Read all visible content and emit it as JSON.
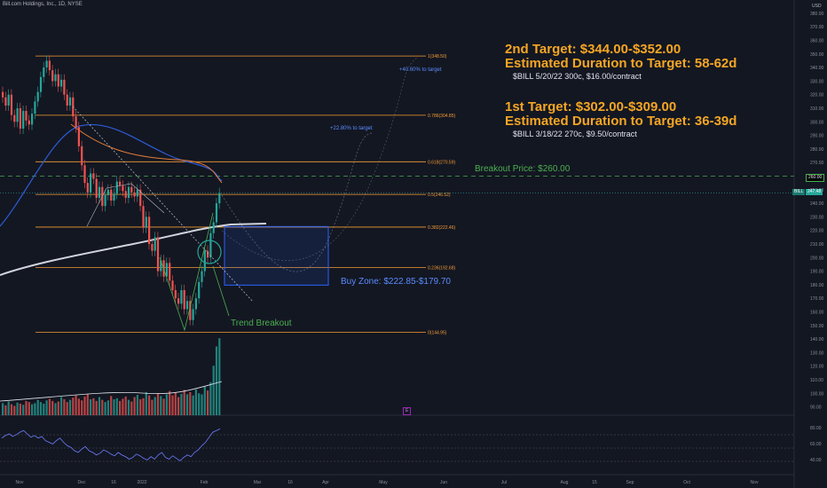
{
  "header": {
    "title": "Bill.com Holdings, Inc., 1D, NYSE"
  },
  "currency": "USD",
  "annotations": {
    "target2_title": "2nd Target: $344.00-$352.00",
    "target2_duration": "Estimated Duration to Target: 58-62d",
    "target2_option": "$BILL 5/20/22 300c, $16.00/contract",
    "target1_title": "1st Target: $302.00-$309.00",
    "target1_duration": "Estimated Duration to Target: 36-39d",
    "target1_option": "$BILL 3/18/22 270c, $9.50/contract",
    "breakout_price": "Breakout Price: $260.00",
    "buy_zone": "Buy Zone: $222.85-$179.70",
    "trend_breakout": "Trend Breakout",
    "pct_target_2": "+40.60% to target",
    "pct_target_1": "+22.80% to target"
  },
  "price_badges": {
    "breakout": "260.00",
    "ticker": "BILL",
    "last": "247.48"
  },
  "event_marker": "E",
  "colors": {
    "background": "#131722",
    "fib": "#f59b33",
    "target_text": "#f5a623",
    "breakout_text": "#4caf50",
    "buy_zone": "#2962ff",
    "up_candle": "#26a69a",
    "down_candle": "#ef5350",
    "ma_white": "#d1d4dc",
    "ma_blue": "#2d5bd4",
    "ma_orange": "#e07b39",
    "rsi_line": "#6f7cff"
  },
  "chart_data": {
    "type": "candlestick",
    "title": "Bill.com Holdings, Inc., 1D, NYSE",
    "ylim": [
      85,
      387
    ],
    "y_ticks": [
      90,
      100,
      110,
      120,
      130,
      140,
      150,
      160,
      170,
      180,
      190,
      200,
      210,
      220,
      230,
      240,
      250,
      260,
      270,
      280,
      290,
      300,
      310,
      320,
      330,
      340,
      350,
      360,
      370,
      380
    ],
    "x_ticks": [
      "Nov",
      "Dec",
      "16",
      "2022",
      "Feb",
      "Mar",
      "16",
      "Apr",
      "May",
      "Jun",
      "Jul",
      "Aug",
      "15",
      "Sep",
      "Oct",
      "Nov"
    ],
    "fib_levels": [
      {
        "label": "1(348.50)",
        "value": 348.5
      },
      {
        "label": "0.786(304.85)",
        "value": 304.85
      },
      {
        "label": "0.618(270.59)",
        "value": 270.59
      },
      {
        "label": "0.5(246.52)",
        "value": 246.52
      },
      {
        "label": "0.382(222.46)",
        "value": 222.46
      },
      {
        "label": "0.236(192.68)",
        "value": 192.68
      },
      {
        "label": "0(144.95)",
        "value": 144.95
      }
    ],
    "breakout_price": 260.0,
    "last_price": 247.48,
    "buy_zone": [
      179.7,
      222.85
    ],
    "closes": [
      318,
      312,
      320,
      305,
      300,
      310,
      295,
      308,
      301,
      298,
      306,
      315,
      322,
      333,
      340,
      345,
      338,
      330,
      335,
      326,
      331,
      320,
      312,
      318,
      304,
      296,
      282,
      268,
      255,
      248,
      262,
      258,
      244,
      252,
      238,
      246,
      250,
      242,
      247,
      256,
      253,
      249,
      244,
      252,
      248,
      245,
      250,
      238,
      222,
      230,
      210,
      205,
      215,
      190,
      198,
      186,
      196,
      183,
      176,
      170,
      166,
      176,
      162,
      168,
      154,
      162,
      170,
      182,
      190,
      205,
      200,
      218,
      226,
      240,
      247.48
    ],
    "volume": [
      22,
      18,
      25,
      20,
      17,
      23,
      21,
      19,
      26,
      24,
      20,
      22,
      28,
      24,
      21,
      27,
      30,
      26,
      22,
      25,
      33,
      29,
      24,
      28,
      32,
      36,
      30,
      27,
      34,
      38,
      29,
      31,
      26,
      33,
      28,
      24,
      27,
      35,
      29,
      31,
      26,
      30,
      34,
      28,
      25,
      33,
      37,
      29,
      31,
      42,
      36,
      28,
      33,
      40,
      35,
      30,
      38,
      44,
      36,
      41,
      33,
      39,
      46,
      38,
      42,
      36,
      47,
      40,
      38,
      52,
      45,
      60,
      90,
      125,
      140
    ],
    "rsi": [
      55,
      58,
      60,
      57,
      59,
      62,
      64,
      60,
      56,
      58,
      55,
      57,
      52,
      50,
      48,
      52,
      55,
      50,
      46,
      44,
      40,
      38,
      42,
      45,
      40,
      38,
      35,
      37,
      41,
      39,
      36,
      34,
      38,
      35,
      33,
      30,
      32,
      36,
      34,
      31,
      29,
      33,
      30,
      35,
      38,
      32,
      30,
      34,
      31,
      28,
      32,
      35,
      33,
      38,
      41,
      46,
      50,
      56,
      62,
      64,
      66
    ]
  }
}
